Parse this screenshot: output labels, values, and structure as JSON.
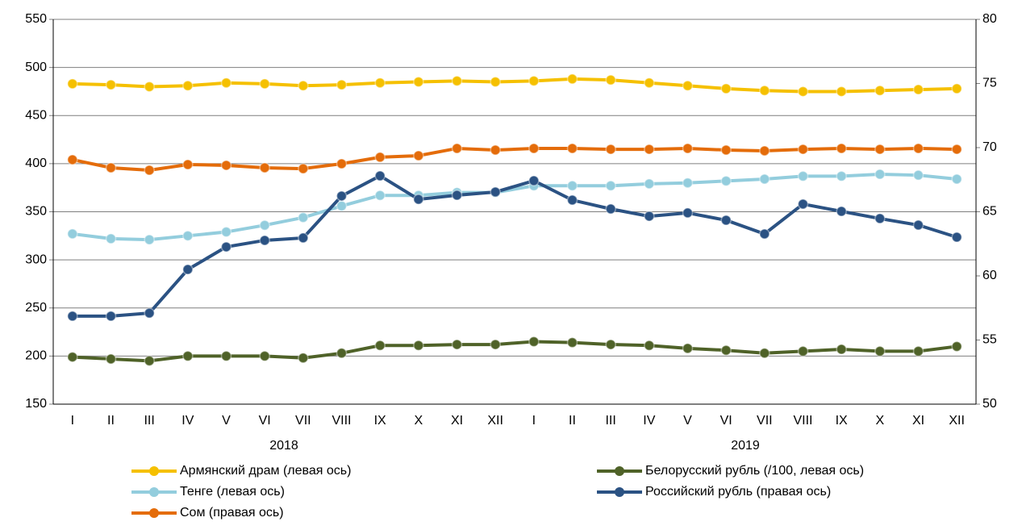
{
  "chart_data": {
    "type": "line",
    "categories": [
      "I",
      "II",
      "III",
      "IV",
      "V",
      "VI",
      "VII",
      "VIII",
      "IX",
      "X",
      "XI",
      "XII",
      "I",
      "II",
      "III",
      "IV",
      "V",
      "VI",
      "VII",
      "VIII",
      "IX",
      "X",
      "XI",
      "XII"
    ],
    "groups": [
      "2018",
      "2019"
    ],
    "ylim": [
      150,
      550
    ],
    "yticks": [
      150,
      200,
      250,
      300,
      350,
      400,
      450,
      500,
      550
    ],
    "y2lim": [
      50,
      80
    ],
    "y2ticks": [
      50,
      55,
      60,
      65,
      70,
      75,
      80
    ],
    "grid": true,
    "series": [
      {
        "name": "Армянский драм (левая ось)",
        "color": "#f5c000",
        "values": [
          483,
          482,
          480,
          481,
          484,
          483,
          481,
          482,
          484,
          485,
          486,
          485,
          486,
          488,
          487,
          484,
          481,
          478,
          476,
          475,
          475,
          476,
          477,
          478
        ]
      },
      {
        "name": "Белорусский рубль (/100, левая ось)",
        "color": "#4f6228",
        "values": [
          199,
          197,
          195,
          200,
          200,
          200,
          198,
          203,
          211,
          211,
          212,
          212,
          215,
          214,
          212,
          211,
          208,
          206,
          203,
          205,
          207,
          205,
          205,
          210
        ]
      },
      {
        "name": "Тенге (левая ось)",
        "color": "#93cddd",
        "values": [
          327,
          322,
          321,
          325,
          329,
          336,
          344,
          356,
          367,
          367,
          370,
          370,
          377,
          377,
          377,
          379,
          380,
          382,
          384,
          387,
          387,
          389,
          388,
          384
        ]
      },
      {
        "name": "Российский рубль (правая ось)",
        "color": "#2b5283",
        "axis": "y2",
        "values": [
          56.86,
          56.86,
          57.1,
          60.5,
          62.26,
          62.77,
          62.96,
          66.23,
          67.8,
          65.97,
          66.29,
          66.54,
          67.42,
          65.91,
          65.22,
          64.65,
          64.91,
          64.34,
          63.27,
          65.6,
          65.03,
          64.47,
          63.96,
          63.02
        ]
      },
      {
        "name": "Сом (правая ось)",
        "color": "#e46c0a",
        "axis": "y2",
        "values": [
          69.06,
          68.43,
          68.24,
          68.68,
          68.62,
          68.43,
          68.36,
          68.74,
          69.25,
          69.37,
          69.94,
          69.81,
          69.94,
          69.94,
          69.87,
          69.87,
          69.94,
          69.81,
          69.75,
          69.87,
          69.94,
          69.87,
          69.94,
          69.87
        ]
      }
    ]
  }
}
